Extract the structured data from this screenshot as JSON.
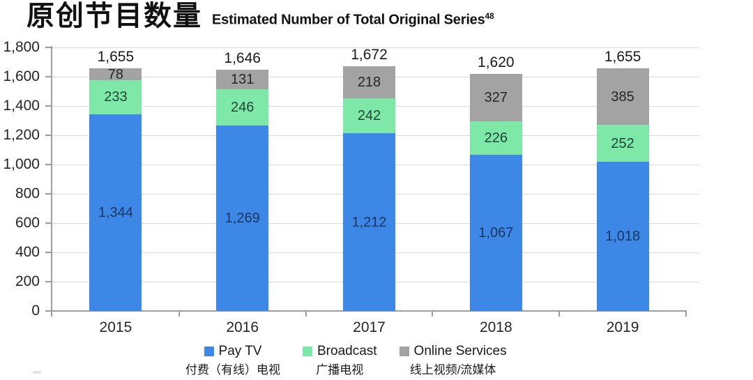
{
  "header": {
    "title_zh": "原创节目数量",
    "title_en": "Estimated Number of Total Original Series",
    "title_superscript": "48"
  },
  "chart_data": {
    "type": "bar",
    "stacked": true,
    "title_zh": "原创节目数量",
    "title_en": "Estimated Number of Total Original Series",
    "footnote_ref": "48",
    "categories": [
      "2015",
      "2016",
      "2017",
      "2018",
      "2019"
    ],
    "series": [
      {
        "name": "Pay TV",
        "name_zh": "付费（有线）电视",
        "color": "#3d87e6",
        "label_color": "#17375e",
        "values": [
          1344,
          1269,
          1212,
          1067,
          1018
        ]
      },
      {
        "name": "Broadcast",
        "name_zh": "广播电视",
        "color": "#7ee8a9",
        "label_color": "#1e4634",
        "values": [
          233,
          246,
          242,
          226,
          252
        ]
      },
      {
        "name": "Online Services",
        "name_zh": "线上视频/流媒体",
        "color": "#a3a3a3",
        "label_color": "#262626",
        "values": [
          78,
          131,
          218,
          327,
          385
        ]
      }
    ],
    "totals": [
      1655,
      1646,
      1672,
      1620,
      1655
    ],
    "ylim": [
      0,
      1800
    ],
    "ytick_step": 200,
    "grid": true,
    "legend_position": "bottom"
  }
}
